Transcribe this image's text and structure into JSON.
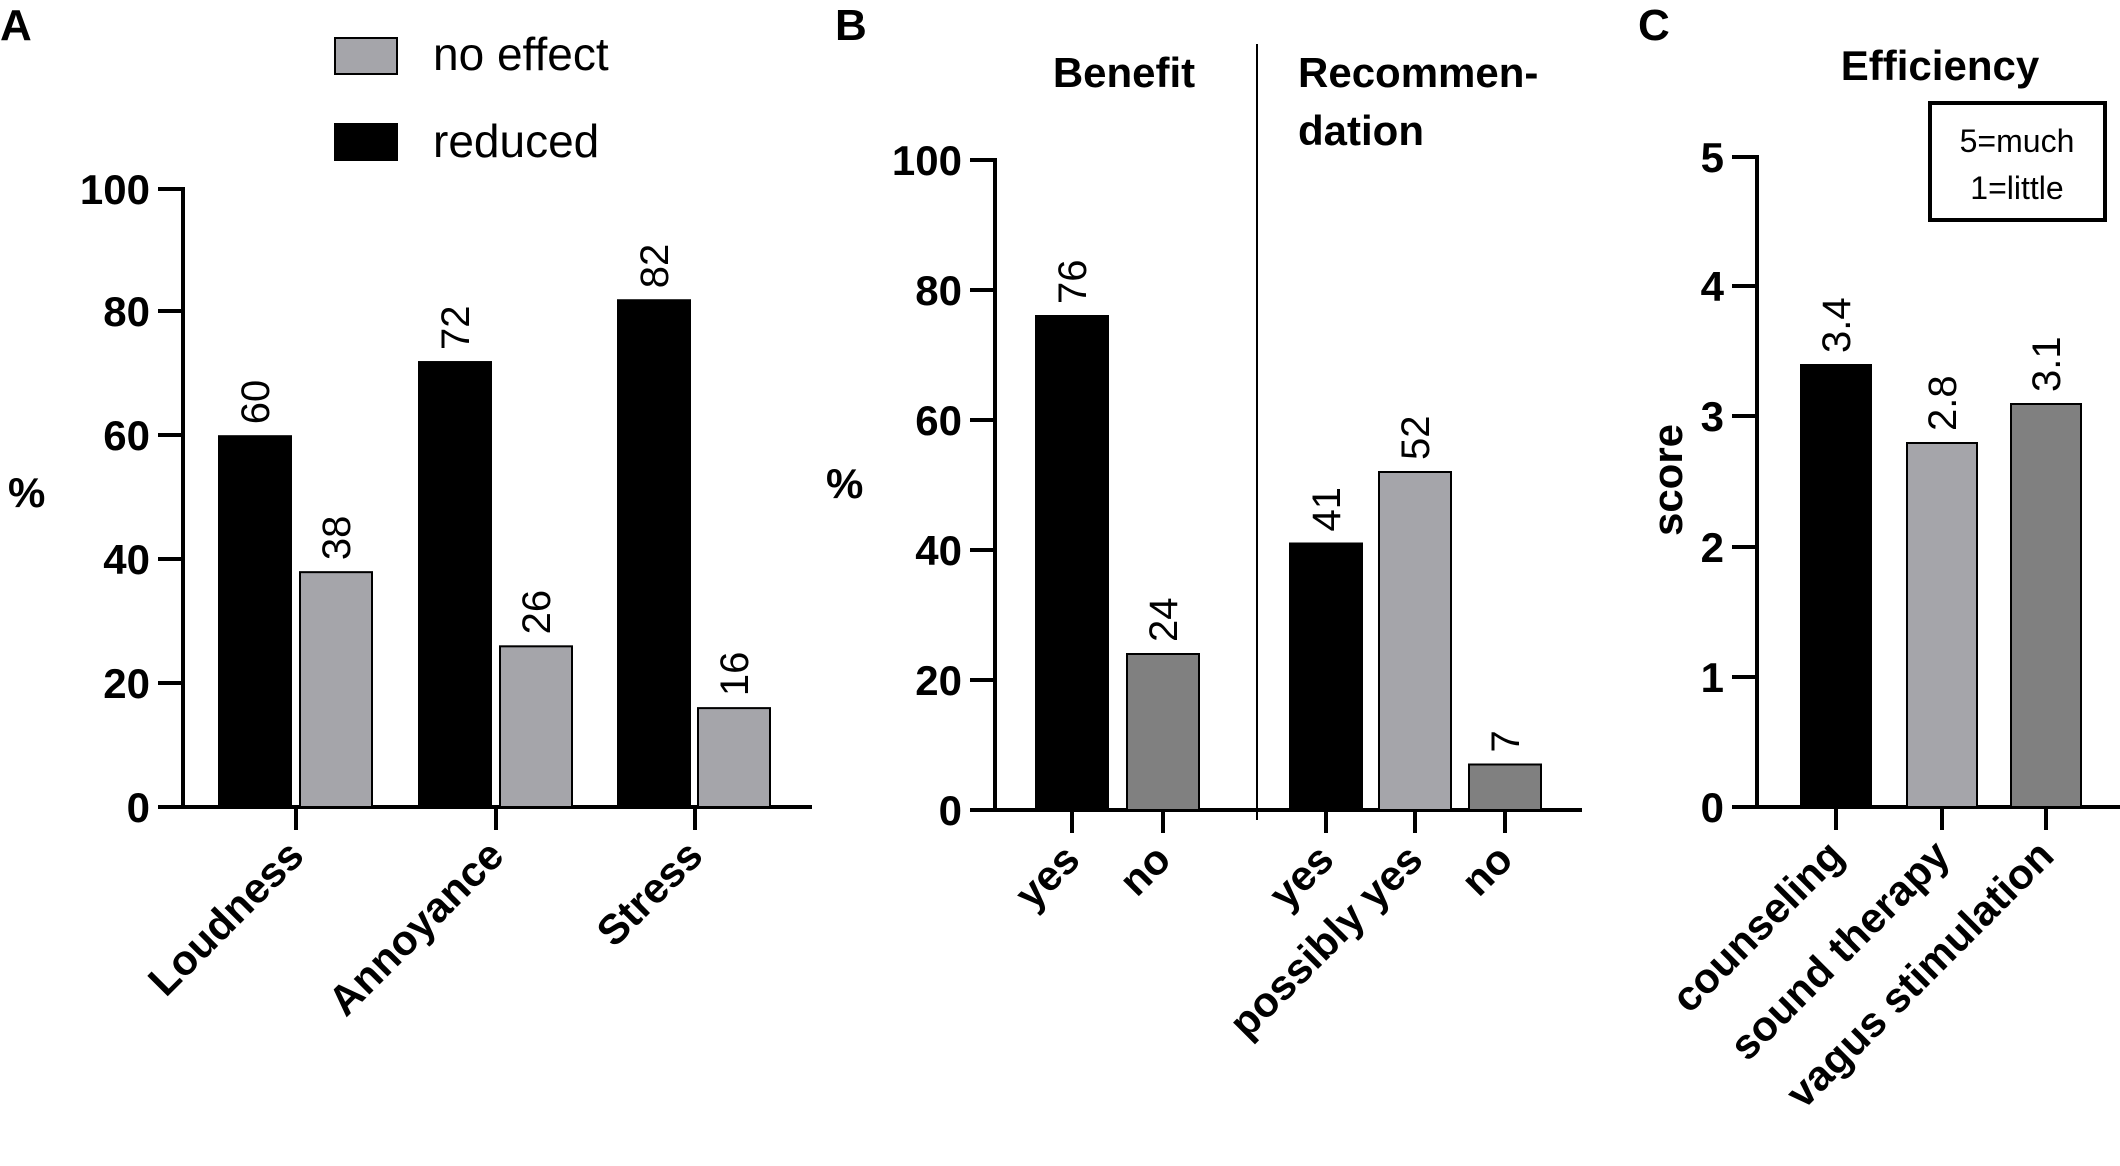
{
  "colors": {
    "black": "#000000",
    "light_gray": "#a5a5aa",
    "dark_gray": "#808080"
  },
  "chart_data": [
    {
      "panel": "A",
      "type": "bar",
      "title": "",
      "xlabel": "",
      "ylabel": "%",
      "ylim": [
        0,
        100
      ],
      "yticks": [
        "0",
        "20",
        "40",
        "60",
        "80",
        "100"
      ],
      "categories": [
        "Loudness",
        "Annoyance",
        "Stress"
      ],
      "series": [
        {
          "name": "reduced",
          "color": "#000000",
          "values": [
            60,
            72,
            82
          ],
          "labels": [
            "60",
            "72",
            "82"
          ]
        },
        {
          "name": "no effect",
          "color": "#a5a5aa",
          "values": [
            38,
            26,
            16
          ],
          "labels": [
            "38",
            "26",
            "16"
          ]
        }
      ],
      "legend": [
        "no effect",
        "reduced"
      ]
    },
    {
      "panel": "B",
      "type": "bar",
      "xlabel": "",
      "ylabel": "%",
      "ylim": [
        0,
        100
      ],
      "yticks": [
        "0",
        "20",
        "40",
        "60",
        "80",
        "100"
      ],
      "groups": [
        {
          "title": "Benefit",
          "bars": [
            {
              "label": "yes",
              "value": 76,
              "value_label": "76",
              "color": "#000000"
            },
            {
              "label": "no",
              "value": 24,
              "value_label": "24",
              "color": "#808080"
            }
          ]
        },
        {
          "title_line1": "Recommen-",
          "title_line2": "dation",
          "bars": [
            {
              "label": "yes",
              "value": 41,
              "value_label": "41",
              "color": "#000000"
            },
            {
              "label": "possibly yes",
              "value": 52,
              "value_label": "52",
              "color": "#a5a5aa"
            },
            {
              "label": "no",
              "value": 7,
              "value_label": "7",
              "color": "#808080"
            }
          ]
        }
      ]
    },
    {
      "panel": "C",
      "type": "bar",
      "title": "Efficiency",
      "xlabel": "",
      "ylabel": "score",
      "ylim": [
        0,
        5
      ],
      "yticks": [
        "0",
        "1",
        "2",
        "3",
        "4",
        "5"
      ],
      "categories": [
        "counseling",
        "sound therapy",
        "vagus stimulation"
      ],
      "values": [
        3.4,
        2.8,
        3.1
      ],
      "value_labels": [
        "3.4",
        "2.8",
        "3.1"
      ],
      "colors": [
        "#000000",
        "#a5a5aa",
        "#808080"
      ],
      "note_line1": "5=much",
      "note_line2": "1=little"
    }
  ]
}
